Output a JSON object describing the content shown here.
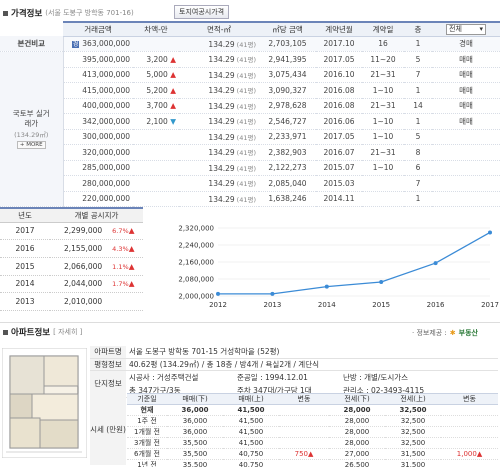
{
  "header": {
    "title": "가격정보",
    "address": "(서울 도봉구 방학동 701-16)",
    "button": "토지여공시가격"
  },
  "price_table": {
    "columns": [
      "거래금액",
      "차액-만",
      "면적-㎡",
      "㎡당 금액",
      "계약년월",
      "계약일",
      "층"
    ],
    "sort_label": "전체",
    "group_label_1": "본건비교",
    "group_label_2": "국토부 실거래가",
    "group_area": "(134.29㎡)",
    "more": "+ MORE",
    "rows": [
      {
        "price": "363,000,000",
        "diff": "",
        "arrow": "",
        "area": "134.29",
        "py": "(41평)",
        "unit": "2,703,105",
        "ym": "2017.10",
        "day": "16",
        "floor": "1",
        "type": "경매",
        "flag": "경"
      },
      {
        "price": "395,000,000",
        "diff": "3,200",
        "arrow": "up",
        "area": "134.29",
        "py": "(41평)",
        "unit": "2,941,395",
        "ym": "2017.05",
        "day": "11~20",
        "floor": "5",
        "type": "매매"
      },
      {
        "price": "413,000,000",
        "diff": "5,000",
        "arrow": "up",
        "area": "134.29",
        "py": "(41평)",
        "unit": "3,075,434",
        "ym": "2016.10",
        "day": "21~31",
        "floor": "7",
        "type": "매매"
      },
      {
        "price": "415,000,000",
        "diff": "5,200",
        "arrow": "up",
        "area": "134.29",
        "py": "(41평)",
        "unit": "3,090,327",
        "ym": "2016.08",
        "day": "1~10",
        "floor": "1",
        "type": "매매"
      },
      {
        "price": "400,000,000",
        "diff": "3,700",
        "arrow": "up",
        "area": "134.29",
        "py": "(41평)",
        "unit": "2,978,628",
        "ym": "2016.08",
        "day": "21~31",
        "floor": "14",
        "type": "매매"
      },
      {
        "price": "342,000,000",
        "diff": "2,100",
        "arrow": "down",
        "area": "134.29",
        "py": "(41평)",
        "unit": "2,546,727",
        "ym": "2016.06",
        "day": "1~10",
        "floor": "1",
        "type": "매매"
      },
      {
        "price": "300,000,000",
        "diff": "",
        "arrow": "",
        "area": "134.29",
        "py": "(41평)",
        "unit": "2,233,971",
        "ym": "2017.05",
        "day": "1~10",
        "floor": "5",
        "type": ""
      },
      {
        "price": "320,000,000",
        "diff": "",
        "arrow": "",
        "area": "134.29",
        "py": "(41평)",
        "unit": "2,382,903",
        "ym": "2016.07",
        "day": "21~31",
        "floor": "8",
        "type": ""
      },
      {
        "price": "285,000,000",
        "diff": "",
        "arrow": "",
        "area": "134.29",
        "py": "(41평)",
        "unit": "2,122,273",
        "ym": "2015.07",
        "day": "1~10",
        "floor": "6",
        "type": ""
      },
      {
        "price": "280,000,000",
        "diff": "",
        "arrow": "",
        "area": "134.29",
        "py": "(41평)",
        "unit": "2,085,040",
        "ym": "2015.03",
        "day": "",
        "floor": "7",
        "type": ""
      },
      {
        "price": "220,000,000",
        "diff": "",
        "arrow": "",
        "area": "134.29",
        "py": "(41평)",
        "unit": "1,638,246",
        "ym": "2014.11",
        "day": "",
        "floor": "1",
        "type": ""
      }
    ]
  },
  "yearly": {
    "headers": [
      "년도",
      "개별 공시지가"
    ],
    "rows": [
      {
        "year": "2017",
        "value": "2,299,000",
        "pct": "6.7%"
      },
      {
        "year": "2016",
        "value": "2,155,000",
        "pct": "4.3%"
      },
      {
        "year": "2015",
        "value": "2,066,000",
        "pct": "1.1%"
      },
      {
        "year": "2014",
        "value": "2,044,000",
        "pct": "1.7%"
      },
      {
        "year": "2013",
        "value": "2,010,000",
        "pct": ""
      }
    ]
  },
  "chart_data": {
    "type": "line",
    "x": [
      "2012",
      "2013",
      "2014",
      "2015",
      "2016",
      "2017"
    ],
    "series": [
      {
        "values": [
          2010000,
          2010000,
          2044000,
          2066000,
          2155000,
          2299000
        ]
      }
    ],
    "y_ticks": [
      "2,000,000",
      "2,080,000",
      "2,160,000",
      "2,240,000",
      "2,320,000"
    ],
    "ylim": [
      2000000,
      2320000
    ],
    "grid": true,
    "line_color": "#3b8bd6"
  },
  "apt": {
    "title": "아파트정보",
    "detail_link": "[ 자세히 ]",
    "info_link": "· 정보제공 :",
    "provider": "부동산",
    "rows": [
      {
        "label": "아파트명",
        "value": "서울 도봉구 방학동 701-15 거성학마을 (52평)"
      },
      {
        "label": "평형정보",
        "value": "40.62평 (134.29㎡) / 총 18층 / 방4개 / 욕실2개 / 계단식"
      }
    ],
    "complex_label": "단지정보",
    "complex": [
      [
        "시공사 : 거성주택건설",
        "준공일 : 1994.12.01",
        "난방 : 개별/도시가스"
      ],
      [
        "총 347가구/3동",
        "주차 347대/가구당 1대",
        "관리소 : 02-3493-4115"
      ]
    ],
    "market_label": "시세 (만원)",
    "market_headers": [
      "기준일",
      "매매(下)",
      "매매(上)",
      "변동",
      "전세(下)",
      "전세(上)",
      "변동"
    ],
    "market_rows": [
      {
        "d": "현재",
        "a": "36,000",
        "b": "41,500",
        "c": "",
        "e": "28,000",
        "f": "32,500",
        "g": "",
        "bold": true
      },
      {
        "d": "1주 전",
        "a": "36,000",
        "b": "41,500",
        "c": "",
        "e": "28,000",
        "f": "32,500",
        "g": ""
      },
      {
        "d": "1개월 전",
        "a": "36,000",
        "b": "41,500",
        "c": "",
        "e": "28,000",
        "f": "32,500",
        "g": ""
      },
      {
        "d": "3개월 전",
        "a": "35,500",
        "b": "41,500",
        "c": "",
        "e": "28,000",
        "f": "32,500",
        "g": ""
      },
      {
        "d": "6개월 전",
        "a": "35,500",
        "b": "40,750",
        "c": "750",
        "e": "27,000",
        "f": "31,500",
        "g": "1,000"
      },
      {
        "d": "1년 전",
        "a": "35,500",
        "b": "40,750",
        "c": "",
        "e": "26,500",
        "f": "31,500",
        "g": ""
      }
    ]
  }
}
